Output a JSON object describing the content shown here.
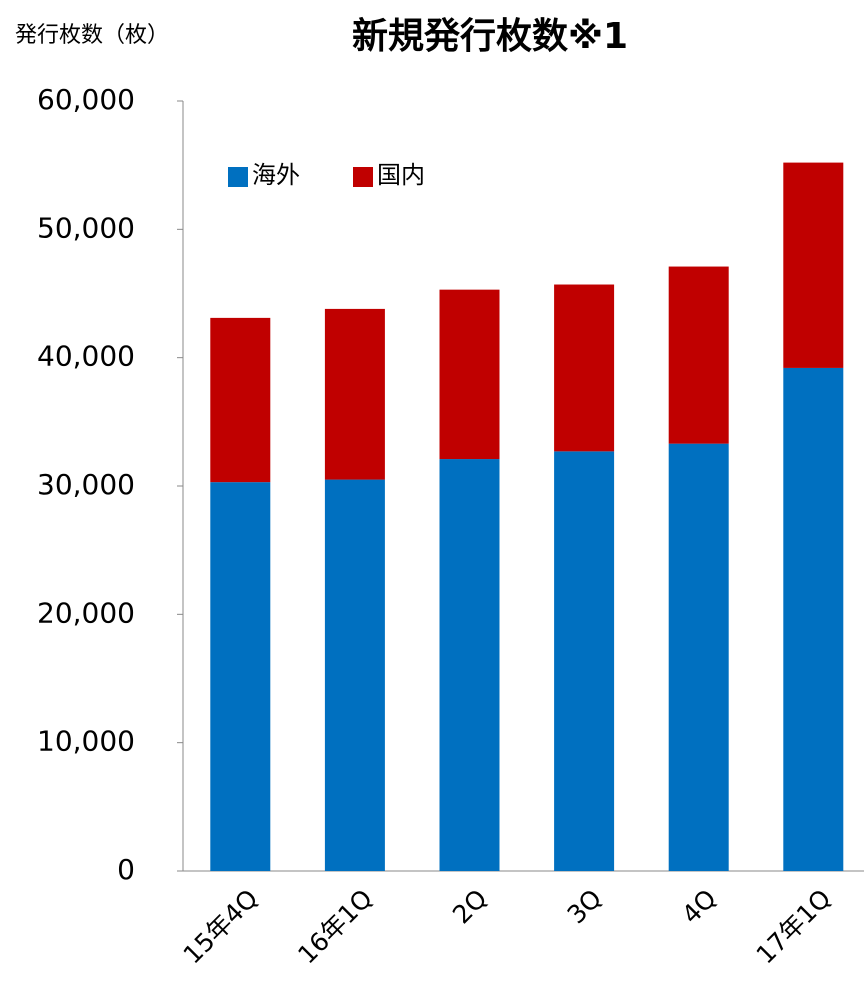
{
  "chart_data": {
    "type": "stacked_bar",
    "title": "新規発行枚数※1",
    "y_label": "発行枚数（枚）",
    "categories": [
      "15年4Q",
      "16年1Q",
      "2Q",
      "3Q",
      "4Q",
      "17年1Q"
    ],
    "series": [
      {
        "name": "海外",
        "color": "#0070c0",
        "values": [
          30300,
          30500,
          32100,
          32700,
          33300,
          39200
        ]
      },
      {
        "name": "国内",
        "color": "#c00000",
        "values": [
          12800,
          13300,
          13200,
          13000,
          13800,
          16000
        ]
      }
    ],
    "ylim": [
      0,
      60000
    ],
    "yticks": [
      0,
      {
        "value": 10000,
        "label": "10,000"
      },
      {
        "value": 20000,
        "label": "20,000"
      },
      {
        "value": 30000,
        "label": "30,000"
      },
      {
        "value": 40000,
        "label": "40,000"
      },
      {
        "value": 50000,
        "label": "50,000"
      },
      {
        "value": 60000,
        "label": "60,000"
      }
    ],
    "legend": "top-left"
  }
}
